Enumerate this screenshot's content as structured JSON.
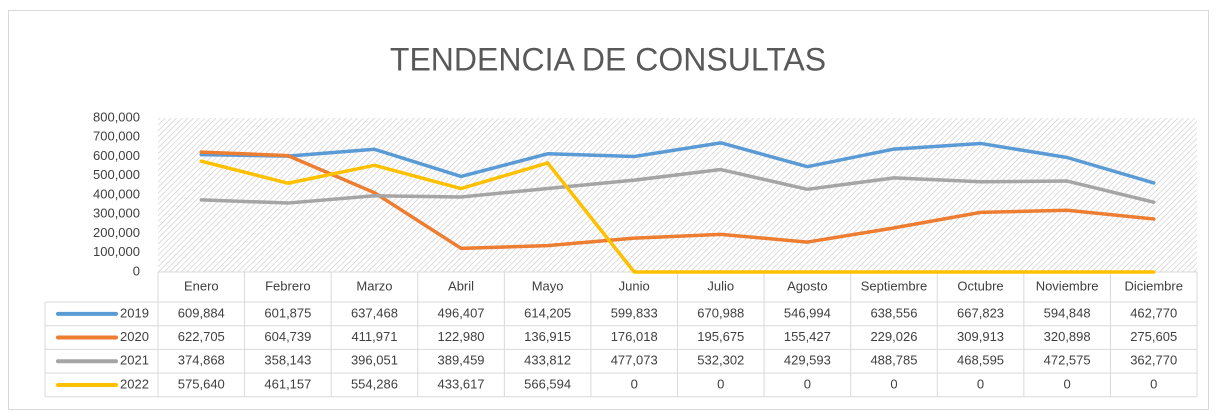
{
  "chart_data": {
    "type": "line",
    "title": "TENDENCIA DE CONSULTAS",
    "categories": [
      "Enero",
      "Febrero",
      "Marzo",
      "Abril",
      "Mayo",
      "Junio",
      "Julio",
      "Agosto",
      "Septiembre",
      "Octubre",
      "Noviembre",
      "Diciembre"
    ],
    "series": [
      {
        "name": "2019",
        "color": "#5b9bd5",
        "values": [
          609884,
          601875,
          637468,
          496407,
          614205,
          599833,
          670988,
          546994,
          638556,
          667823,
          594848,
          462770
        ],
        "value_labels": [
          "609,884",
          "601,875",
          "637,468",
          "496,407",
          "614,205",
          "599,833",
          "670,988",
          "546,994",
          "638,556",
          "667,823",
          "594,848",
          "462,770"
        ]
      },
      {
        "name": "2020",
        "color": "#ed7d31",
        "values": [
          622705,
          604739,
          411971,
          122980,
          136915,
          176018,
          195675,
          155427,
          229026,
          309913,
          320898,
          275605
        ],
        "value_labels": [
          "622,705",
          "604,739",
          "411,971",
          "122,980",
          "136,915",
          "176,018",
          "195,675",
          "155,427",
          "229,026",
          "309,913",
          "320,898",
          "275,605"
        ]
      },
      {
        "name": "2021",
        "color": "#a5a5a5",
        "values": [
          374868,
          358143,
          396051,
          389459,
          433812,
          477073,
          532302,
          429593,
          488785,
          468595,
          472575,
          362770
        ],
        "value_labels": [
          "374,868",
          "358,143",
          "396,051",
          "389,459",
          "433,812",
          "477,073",
          "532,302",
          "429,593",
          "488,785",
          "468,595",
          "472,575",
          "362,770"
        ]
      },
      {
        "name": "2022",
        "color": "#ffc000",
        "values": [
          575640,
          461157,
          554286,
          433617,
          566594,
          0,
          0,
          0,
          0,
          0,
          0,
          0
        ],
        "value_labels": [
          "575,640",
          "461,157",
          "554,286",
          "433,617",
          "566,594",
          "0",
          "0",
          "0",
          "0",
          "0",
          "0",
          "0"
        ]
      }
    ],
    "ylim": [
      0,
      800000
    ],
    "yticks": [
      0,
      {
        "value": 100000,
        "label": "100,000"
      },
      {
        "value": 200000,
        "label": "200,000"
      },
      {
        "value": 300000,
        "label": "300,000"
      },
      {
        "value": 400000,
        "label": "400,000"
      },
      {
        "value": 500000,
        "label": "500,000"
      },
      {
        "value": 600000,
        "label": "600,000"
      },
      {
        "value": 700000,
        "label": "700,000"
      },
      {
        "value": 800000,
        "label": "800,000"
      }
    ],
    "grid": false
  }
}
